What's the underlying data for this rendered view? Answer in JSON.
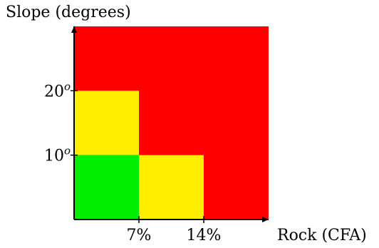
{
  "chart_data": {
    "type": "heatmap",
    "ylabel": "Slope (degrees)",
    "xlabel": "Rock (CFA)",
    "x_ticks": [
      {
        "value": 7,
        "label": "7%"
      },
      {
        "value": 14,
        "label": "14%"
      }
    ],
    "y_ticks": [
      {
        "value": 10,
        "label_base": "10",
        "label_sup": "o"
      },
      {
        "value": 20,
        "label_base": "20",
        "label_sup": "o"
      }
    ],
    "xlim": [
      0,
      21
    ],
    "ylim": [
      0,
      30
    ],
    "regions": [
      {
        "name": "red-region",
        "color": "#ff0000",
        "x": [
          0,
          21
        ],
        "y": [
          0,
          30
        ]
      },
      {
        "name": "yellow-region-upper",
        "color": "#ffee00",
        "x": [
          0,
          7
        ],
        "y": [
          10,
          20
        ]
      },
      {
        "name": "yellow-region-lower",
        "color": "#ffee00",
        "x": [
          7,
          14
        ],
        "y": [
          0,
          10
        ]
      },
      {
        "name": "green-region",
        "color": "#00ee00",
        "x": [
          0,
          7
        ],
        "y": [
          0,
          10
        ]
      }
    ]
  }
}
